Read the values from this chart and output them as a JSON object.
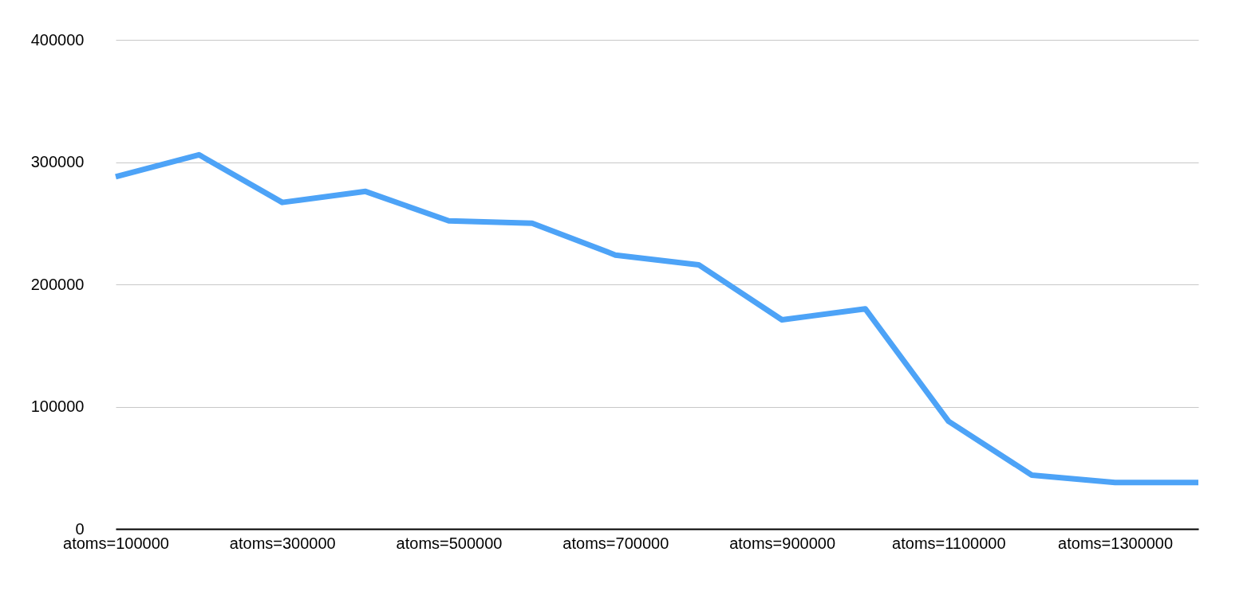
{
  "chart_data": {
    "type": "line",
    "categories": [
      "atoms=100000",
      null,
      "atoms=300000",
      null,
      "atoms=500000",
      null,
      "atoms=700000",
      null,
      "atoms=900000",
      null,
      "atoms=1100000",
      null,
      "atoms=1300000",
      null
    ],
    "series": [
      {
        "color": "#4da3f7",
        "values": [
          288000,
          306000,
          267000,
          276000,
          252000,
          250000,
          224000,
          216000,
          171000,
          180000,
          88000,
          44000,
          38000,
          38000
        ]
      }
    ],
    "ylim": [
      0,
      400000
    ],
    "yticks": [
      0,
      100000,
      200000,
      300000,
      400000
    ],
    "grid": "y",
    "marker": "none",
    "line_style": "solid"
  }
}
